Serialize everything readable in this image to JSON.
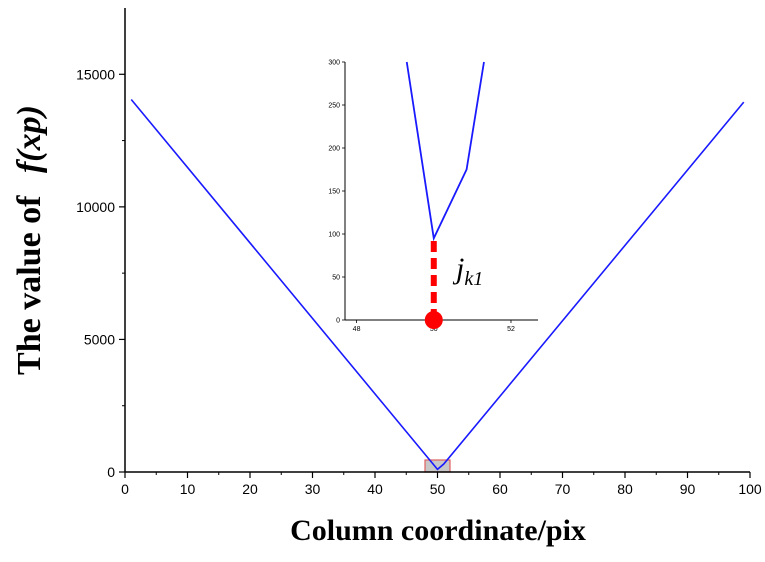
{
  "chart_data": [
    {
      "type": "line",
      "xlabel": "Column coordinate/pix",
      "ylabel_prefix": "The value of",
      "ylabel_func": "f(xp)",
      "xlim": [
        0,
        100
      ],
      "ylim": [
        0,
        17500
      ],
      "x_ticks": [
        0,
        10,
        20,
        30,
        40,
        50,
        60,
        70,
        80,
        90,
        100
      ],
      "y_ticks": [
        0,
        5000,
        10000,
        15000
      ],
      "grid": false,
      "series": [
        {
          "color": "#1a1aff",
          "x": [
            1,
            50,
            51,
            99
          ],
          "y": [
            14050,
            100,
            300,
            13950
          ]
        }
      ],
      "highlight_region": {
        "x": [
          48,
          52
        ],
        "y": [
          0,
          300
        ]
      }
    },
    {
      "type": "line",
      "inset": true,
      "xlim": [
        47.7,
        52.7
      ],
      "ylim": [
        0,
        300
      ],
      "x_ticks": [
        48,
        50,
        52
      ],
      "y_ticks": [
        0,
        50,
        100,
        150,
        200,
        250,
        300
      ],
      "series": [
        {
          "color": "#1a1aff",
          "x": [
            49.3,
            50,
            50.85,
            51.3
          ],
          "y": [
            300,
            95,
            175,
            300
          ]
        }
      ],
      "marker": {
        "x": 50,
        "y": 0,
        "color": "#ff0000"
      },
      "dashed_line": {
        "x": 50,
        "y": [
          0,
          95
        ],
        "color": "#ff0000"
      },
      "annotation": {
        "main": "j",
        "sub": "k1"
      }
    }
  ]
}
